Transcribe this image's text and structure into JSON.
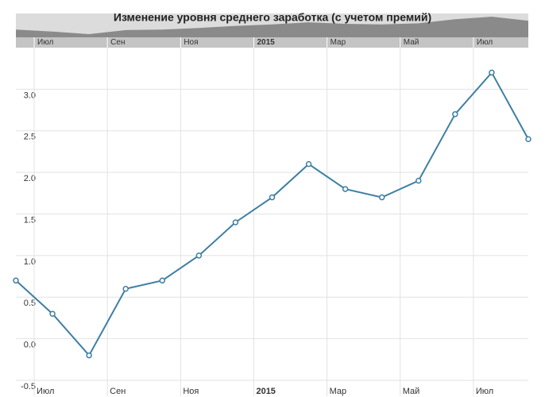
{
  "chart_data": {
    "type": "line",
    "title": "Изменение уровня среднего заработка (с учетом премий)",
    "x": [
      "2014-06",
      "2014-07",
      "2014-08",
      "2014-09",
      "2014-10",
      "2014-11",
      "2014-12",
      "2015-01",
      "2015-02",
      "2015-03",
      "2015-04",
      "2015-05",
      "2015-06",
      "2015-07",
      "2015-08"
    ],
    "series": [
      {
        "color": "#3d7fa3",
        "values": [
          0.7,
          0.3,
          -0.2,
          0.6,
          0.7,
          1.0,
          1.4,
          1.7,
          2.1,
          1.8,
          1.7,
          1.9,
          2.7,
          3.2,
          2.4
        ]
      }
    ],
    "xlim": [
      "2014-06",
      "2015-08"
    ],
    "xticks": [
      {
        "value": "2014-07",
        "label": "Июл"
      },
      {
        "value": "2014-09",
        "label": "Сен"
      },
      {
        "value": "2014-11",
        "label": "Ноя"
      },
      {
        "value": "2015-01",
        "label": "2015"
      },
      {
        "value": "2015-03",
        "label": "Мар"
      },
      {
        "value": "2015-05",
        "label": "Май"
      },
      {
        "value": "2015-07",
        "label": "Июл"
      }
    ],
    "ylim": [
      -0.5,
      3.5
    ],
    "yticks": [
      {
        "value": -0.5,
        "label": "-0.5"
      },
      {
        "value": 0,
        "label": "0.0"
      },
      {
        "value": 0.5,
        "label": "0.5"
      },
      {
        "value": 1,
        "label": "1.0"
      },
      {
        "value": 1.5,
        "label": "1.5"
      },
      {
        "value": 2,
        "label": "2.0"
      },
      {
        "value": 2.5,
        "label": "2.5"
      },
      {
        "value": 3,
        "label": "3.0"
      }
    ],
    "grid": true
  }
}
